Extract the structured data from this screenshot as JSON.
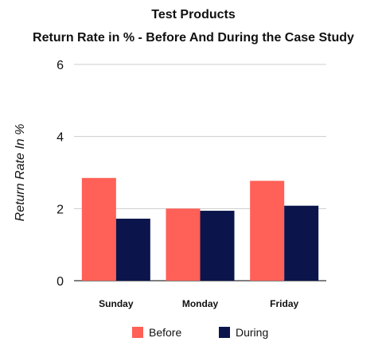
{
  "chart_data": {
    "type": "bar",
    "title": "Test Products",
    "subtitle": "Return Rate in % - Before And During the Case Study",
    "xlabel": "",
    "ylabel": "Return Rate In %",
    "categories": [
      "Sunday",
      "Monday",
      "Friday"
    ],
    "series": [
      {
        "name": "Before",
        "color": "#ff6057",
        "values": [
          2.85,
          2.0,
          2.77
        ]
      },
      {
        "name": "During",
        "color": "#0b154c",
        "values": [
          1.72,
          1.94,
          2.08
        ]
      }
    ],
    "ylim": [
      0,
      6
    ],
    "yticks": [
      0,
      2,
      4,
      6
    ],
    "grid": true,
    "legend": "bottom"
  }
}
